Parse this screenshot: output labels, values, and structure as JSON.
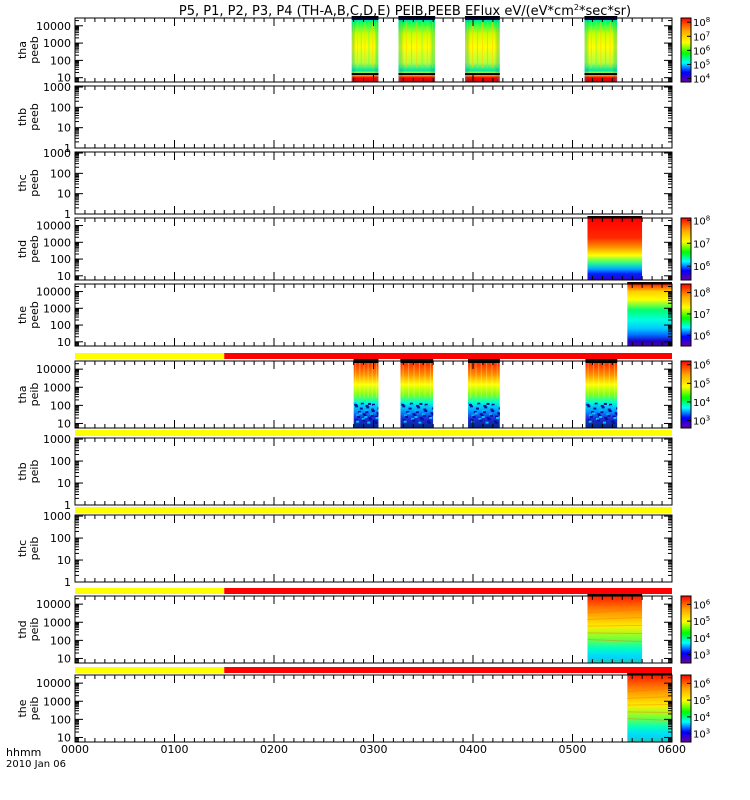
{
  "chart_data": {
    "type": "heatmap",
    "title": {
      "main": "P5, P1, P2, P3, P4 (TH-A,B,C,D,E) PEIB,PEEB EFlux eV/(eV*cm",
      "sup": "2",
      "tail": "*sec*sr)"
    },
    "x_axis": {
      "ticks": [
        "0000",
        "0100",
        "0200",
        "0300",
        "0400",
        "0500",
        "0600"
      ],
      "range_hours": [
        0,
        6
      ],
      "corner_label": "hhmm",
      "date_label": "2010 Jan 06"
    },
    "colors": {
      "red": "#ff0000",
      "yellow": "#ffff00",
      "black": "#000000"
    },
    "panels": [
      {
        "id": "tha-peeb",
        "line1": "tha",
        "line2": "peeb",
        "yticks": [
          "10000",
          "1000",
          "100",
          "10"
        ],
        "yticks_log": [
          4,
          3,
          2,
          1
        ],
        "ylim_log": [
          0.75,
          4.45
        ],
        "has_data": true,
        "colorbar": {
          "ticks_exp": [
            "8",
            "7",
            "6",
            "5",
            "4"
          ],
          "exp_values": [
            8,
            7,
            6,
            5,
            4
          ],
          "range_exp": [
            3.75,
            8.3
          ]
        },
        "blocks": [
          {
            "start_h": 2.78,
            "end_h": 3.05,
            "style": "electron-burst"
          },
          {
            "start_h": 3.25,
            "end_h": 3.62,
            "style": "electron-burst"
          },
          {
            "start_h": 3.92,
            "end_h": 4.27,
            "style": "electron-burst"
          },
          {
            "start_h": 5.12,
            "end_h": 5.45,
            "style": "electron-burst"
          }
        ]
      },
      {
        "id": "thb-peeb",
        "line1": "thb",
        "line2": "peeb",
        "yticks": [
          "1000",
          "100",
          "10",
          "1"
        ],
        "yticks_log": [
          3,
          2,
          1,
          0
        ],
        "ylim_log": [
          0,
          3.05
        ],
        "has_data": false,
        "blocks": []
      },
      {
        "id": "thc-peeb",
        "line1": "thc",
        "line2": "peeb",
        "yticks": [
          "1000",
          "100",
          "10",
          "1"
        ],
        "yticks_log": [
          3,
          2,
          1,
          0
        ],
        "ylim_log": [
          0,
          3.05
        ],
        "has_data": false,
        "blocks": []
      },
      {
        "id": "thd-peeb",
        "line1": "thd",
        "line2": "peeb",
        "yticks": [
          "10000",
          "1000",
          "100",
          "10"
        ],
        "yticks_log": [
          4,
          3,
          2,
          1
        ],
        "ylim_log": [
          0.75,
          4.45
        ],
        "has_data": true,
        "colorbar": {
          "ticks_exp": [
            "8",
            "7",
            "6"
          ],
          "exp_values": [
            8,
            7,
            6
          ],
          "range_exp": [
            5.4,
            8.1
          ]
        },
        "blocks": [
          {
            "start_h": 5.15,
            "end_h": 5.7,
            "style": "electron-solid"
          }
        ]
      },
      {
        "id": "the-peeb",
        "line1": "the",
        "line2": "peeb",
        "yticks": [
          "10000",
          "1000",
          "100",
          "10"
        ],
        "yticks_log": [
          4,
          3,
          2,
          1
        ],
        "ylim_log": [
          0.75,
          4.45
        ],
        "has_data": true,
        "colorbar": {
          "ticks_exp": [
            "8",
            "7",
            "6"
          ],
          "exp_values": [
            8,
            7,
            6
          ],
          "range_exp": [
            5.5,
            8.4
          ]
        },
        "blocks": [
          {
            "start_h": 5.55,
            "end_h": 6.0,
            "style": "electron-gradient"
          }
        ]
      },
      {
        "id": "tha-peib",
        "line1": "tha",
        "line2": "peib",
        "yticks": [
          "10000",
          "1000",
          "100",
          "10"
        ],
        "yticks_log": [
          4,
          3,
          2,
          1
        ],
        "ylim_log": [
          0.75,
          4.45
        ],
        "has_data": true,
        "colorbar": {
          "ticks_exp": [
            "6",
            "5",
            "4",
            "3"
          ],
          "exp_values": [
            6,
            5,
            4,
            3
          ],
          "range_exp": [
            2.6,
            6.2
          ]
        },
        "flag": [
          {
            "start_h": 0,
            "end_h": 1.5,
            "color": "yellow"
          },
          {
            "start_h": 1.5,
            "end_h": 6.0,
            "color": "red"
          }
        ],
        "blocks": [
          {
            "start_h": 2.8,
            "end_h": 3.05,
            "style": "ion-burst"
          },
          {
            "start_h": 3.27,
            "end_h": 3.6,
            "style": "ion-burst"
          },
          {
            "start_h": 3.95,
            "end_h": 4.27,
            "style": "ion-burst"
          },
          {
            "start_h": 5.13,
            "end_h": 5.45,
            "style": "ion-burst"
          }
        ]
      },
      {
        "id": "thb-peib",
        "line1": "thb",
        "line2": "peib",
        "yticks": [
          "1000",
          "100",
          "10",
          "1"
        ],
        "yticks_log": [
          3,
          2,
          1,
          0
        ],
        "ylim_log": [
          0,
          3.05
        ],
        "has_data": false,
        "flag": [
          {
            "start_h": 0,
            "end_h": 6.0,
            "color": "yellow"
          }
        ],
        "blocks": []
      },
      {
        "id": "thc-peib",
        "line1": "thc",
        "line2": "peib",
        "yticks": [
          "1000",
          "100",
          "10",
          "1"
        ],
        "yticks_log": [
          3,
          2,
          1,
          0
        ],
        "ylim_log": [
          0,
          3.05
        ],
        "has_data": false,
        "flag": [
          {
            "start_h": 0,
            "end_h": 6.0,
            "color": "yellow"
          }
        ],
        "blocks": []
      },
      {
        "id": "thd-peib",
        "line1": "thd",
        "line2": "peib",
        "yticks": [
          "10000",
          "1000",
          "100",
          "10"
        ],
        "yticks_log": [
          4,
          3,
          2,
          1
        ],
        "ylim_log": [
          0.75,
          4.45
        ],
        "has_data": true,
        "colorbar": {
          "ticks_exp": [
            "6",
            "5",
            "4",
            "3"
          ],
          "exp_values": [
            6,
            5,
            4,
            3
          ],
          "range_exp": [
            2.5,
            6.5
          ]
        },
        "flag": [
          {
            "start_h": 0,
            "end_h": 1.5,
            "color": "yellow"
          },
          {
            "start_h": 1.5,
            "end_h": 6.0,
            "color": "red"
          }
        ],
        "blocks": [
          {
            "start_h": 5.15,
            "end_h": 5.7,
            "style": "ion-solid"
          }
        ]
      },
      {
        "id": "the-peib",
        "line1": "the",
        "line2": "peib",
        "yticks": [
          "10000",
          "1000",
          "100",
          "10"
        ],
        "yticks_log": [
          4,
          3,
          2,
          1
        ],
        "ylim_log": [
          0.75,
          4.45
        ],
        "has_data": true,
        "colorbar": {
          "ticks_exp": [
            "6",
            "5",
            "4",
            "3"
          ],
          "exp_values": [
            6,
            5,
            4,
            3
          ],
          "range_exp": [
            2.5,
            6.5
          ]
        },
        "flag": [
          {
            "start_h": 0,
            "end_h": 1.5,
            "color": "yellow"
          },
          {
            "start_h": 1.5,
            "end_h": 6.0,
            "color": "red"
          }
        ],
        "blocks": [
          {
            "start_h": 5.55,
            "end_h": 6.0,
            "style": "ion-solid"
          }
        ]
      }
    ]
  }
}
